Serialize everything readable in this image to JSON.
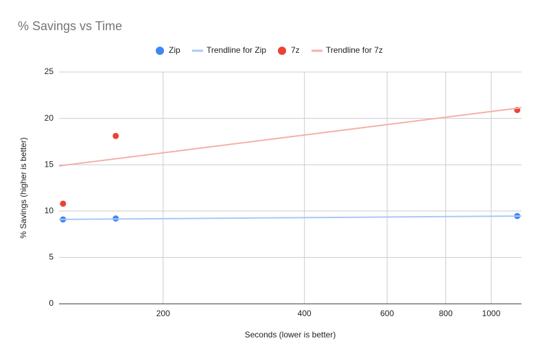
{
  "chart_data": {
    "type": "scatter",
    "title": "% Savings vs Time",
    "xlabel": "Seconds (lower is better)",
    "ylabel": "% Savings (higher is better)",
    "xscale": "log",
    "xlim": [
      120,
      1160
    ],
    "ylim": [
      0,
      25
    ],
    "xticks": [
      200,
      400,
      600,
      800,
      1000
    ],
    "yticks": [
      0,
      5,
      10,
      15,
      20,
      25
    ],
    "grid": true,
    "legend": "top",
    "series": [
      {
        "name": "Zip",
        "type": "scatter",
        "color": "#4285f4",
        "x": [
          122.4,
          158.5,
          1136
        ],
        "values": [
          9.1,
          9.2,
          9.47
        ]
      },
      {
        "name": "Trendline for Zip",
        "type": "line",
        "color": "#a8c7fa",
        "x": [
          120,
          1160
        ],
        "values": [
          9.1,
          9.47
        ]
      },
      {
        "name": "7z",
        "type": "scatter",
        "color": "#ea4335",
        "x": [
          122.4,
          158.5,
          1136
        ],
        "values": [
          10.8,
          18.1,
          20.9
        ]
      },
      {
        "name": "Trendline for 7z",
        "type": "line",
        "color": "#f4b0a8",
        "x": [
          120,
          1160
        ],
        "values": [
          14.87,
          21.15
        ]
      }
    ]
  }
}
